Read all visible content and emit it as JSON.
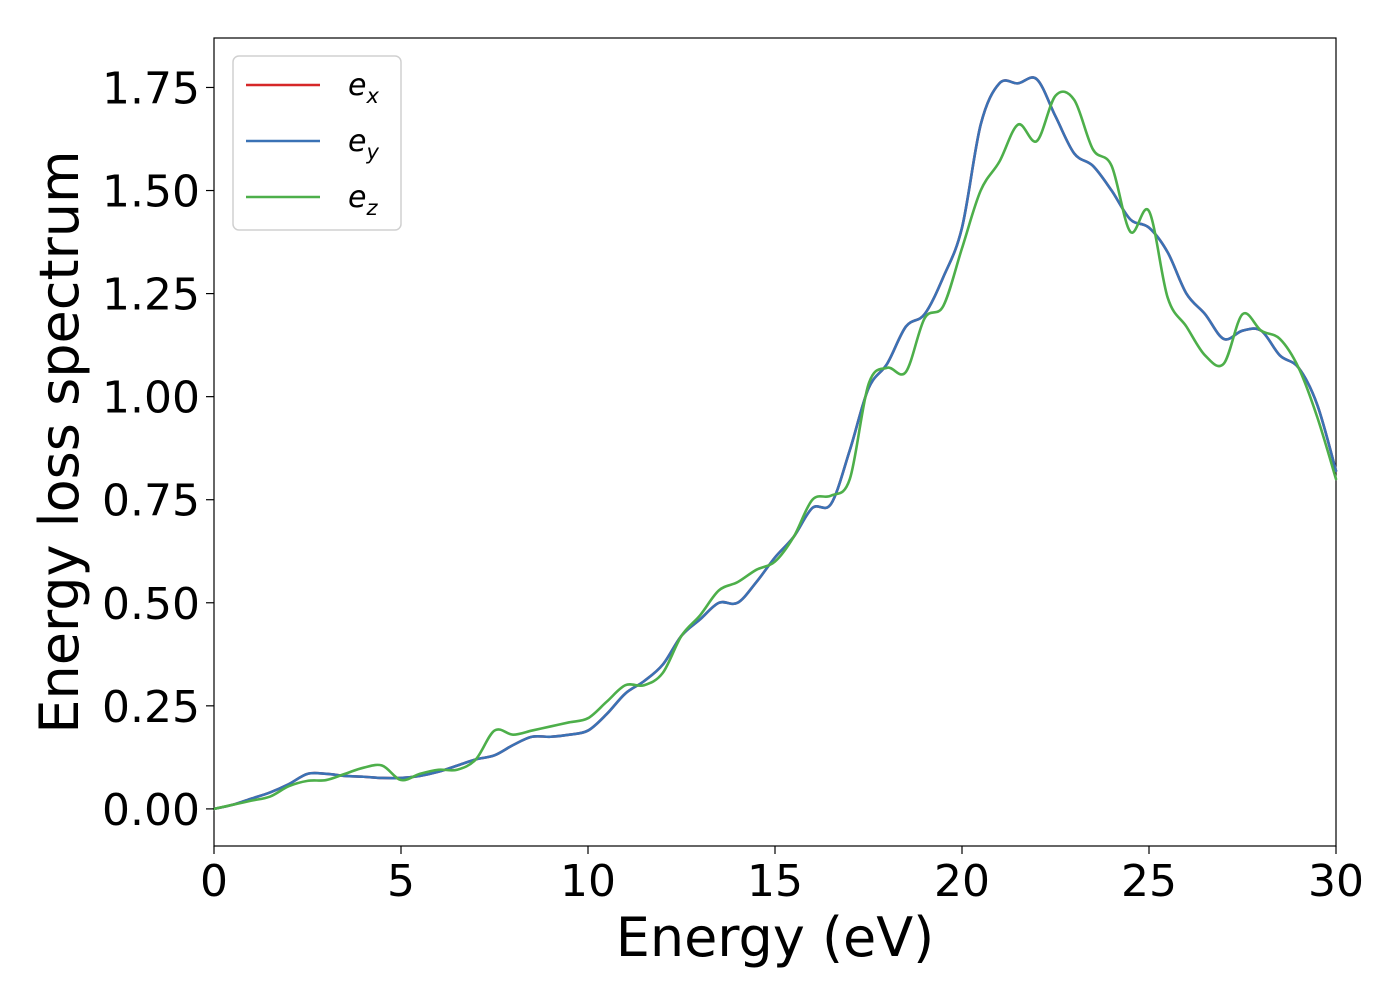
{
  "chart_data": {
    "type": "line",
    "xlabel": "Energy (eV)",
    "ylabel": "Energy loss spectrum",
    "xlim": [
      0,
      30
    ],
    "ylim": [
      -0.09,
      1.87
    ],
    "xticks": [
      "0",
      "5",
      "10",
      "15",
      "20",
      "25",
      "30"
    ],
    "yticks": [
      "0.00",
      "0.25",
      "0.50",
      "0.75",
      "1.00",
      "1.25",
      "1.50",
      "1.75"
    ],
    "grid": false,
    "legend_position": "top-left",
    "x": [
      0,
      0.5,
      1,
      1.5,
      2,
      2.5,
      3,
      3.5,
      4,
      4.5,
      5,
      5.5,
      6,
      6.5,
      7,
      7.5,
      8,
      8.5,
      9,
      9.5,
      10,
      10.5,
      11,
      11.5,
      12,
      12.5,
      13,
      13.5,
      14,
      14.5,
      15,
      15.5,
      16,
      16.5,
      17,
      17.5,
      18,
      18.5,
      19,
      19.5,
      20,
      20.5,
      21,
      21.5,
      22,
      22.5,
      23,
      23.5,
      24,
      24.5,
      25,
      25.5,
      26,
      26.5,
      27,
      27.5,
      28,
      28.5,
      29,
      29.5,
      30
    ],
    "series": [
      {
        "name": "e",
        "name_sub": "x",
        "color": "#d62728",
        "values": [
          0,
          0.01,
          0.025,
          0.04,
          0.06,
          0.085,
          0.085,
          0.08,
          0.078,
          0.075,
          0.075,
          0.08,
          0.09,
          0.105,
          0.12,
          0.13,
          0.155,
          0.175,
          0.175,
          0.18,
          0.19,
          0.23,
          0.28,
          0.31,
          0.35,
          0.42,
          0.46,
          0.5,
          0.5,
          0.55,
          0.61,
          0.66,
          0.73,
          0.74,
          0.87,
          1.02,
          1.08,
          1.17,
          1.2,
          1.29,
          1.41,
          1.66,
          1.76,
          1.76,
          1.77,
          1.68,
          1.59,
          1.56,
          1.5,
          1.43,
          1.41,
          1.35,
          1.25,
          1.2,
          1.14,
          1.16,
          1.16,
          1.1,
          1.07,
          0.98,
          0.82
        ]
      },
      {
        "name": "e",
        "name_sub": "y",
        "color": "#3a72b5",
        "values": [
          0,
          0.01,
          0.025,
          0.04,
          0.06,
          0.085,
          0.085,
          0.08,
          0.078,
          0.075,
          0.075,
          0.08,
          0.09,
          0.105,
          0.12,
          0.13,
          0.155,
          0.175,
          0.175,
          0.18,
          0.19,
          0.23,
          0.28,
          0.31,
          0.35,
          0.42,
          0.46,
          0.5,
          0.5,
          0.55,
          0.61,
          0.66,
          0.73,
          0.74,
          0.87,
          1.02,
          1.08,
          1.17,
          1.2,
          1.29,
          1.41,
          1.66,
          1.76,
          1.76,
          1.77,
          1.68,
          1.59,
          1.56,
          1.5,
          1.43,
          1.41,
          1.35,
          1.25,
          1.2,
          1.14,
          1.16,
          1.16,
          1.1,
          1.07,
          0.98,
          0.82
        ]
      },
      {
        "name": "e",
        "name_sub": "z",
        "color": "#4daf4a",
        "values": [
          0,
          0.01,
          0.02,
          0.03,
          0.055,
          0.068,
          0.07,
          0.085,
          0.1,
          0.105,
          0.07,
          0.085,
          0.095,
          0.095,
          0.12,
          0.19,
          0.18,
          0.19,
          0.2,
          0.21,
          0.22,
          0.26,
          0.3,
          0.3,
          0.33,
          0.42,
          0.47,
          0.53,
          0.55,
          0.58,
          0.6,
          0.66,
          0.75,
          0.76,
          0.8,
          1.03,
          1.07,
          1.06,
          1.19,
          1.22,
          1.36,
          1.5,
          1.57,
          1.66,
          1.62,
          1.73,
          1.72,
          1.6,
          1.56,
          1.4,
          1.45,
          1.24,
          1.17,
          1.1,
          1.08,
          1.2,
          1.16,
          1.14,
          1.07,
          0.95,
          0.8
        ]
      }
    ]
  }
}
